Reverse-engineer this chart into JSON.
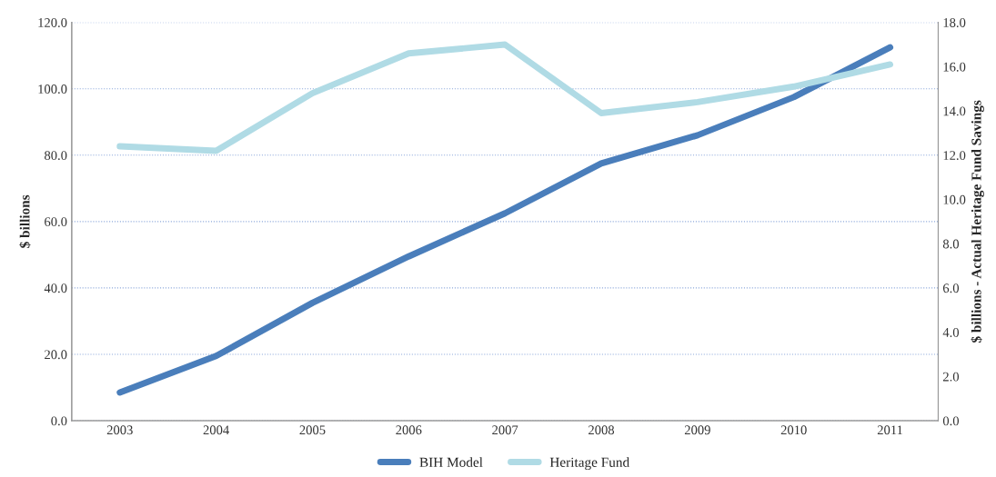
{
  "chart_data": {
    "type": "line",
    "ylabel": "$ billions",
    "y2label": "$ billions - Actual Heritage Fund Savings",
    "categories": [
      "2003",
      "2004",
      "2005",
      "2006",
      "2007",
      "2008",
      "2009",
      "2010",
      "2011"
    ],
    "series": [
      {
        "name": "BIH Model",
        "color": "#4a7ebb",
        "values": [
          8.5,
          19.5,
          35.5,
          49.5,
          62.5,
          77.5,
          86,
          97.5,
          112.5
        ]
      },
      {
        "name": "Heritage Fund",
        "color": "#b0dbe5",
        "axis": "y2",
        "values": [
          12.4,
          12.2,
          14.8,
          16.6,
          17.0,
          13.9,
          14.4,
          15.1,
          16.1
        ]
      }
    ],
    "ylim": [
      0,
      120
    ],
    "yticks": [
      {
        "value": 0,
        "label": "0.0"
      },
      {
        "value": 20,
        "label": "20.0"
      },
      {
        "value": 40,
        "label": "40.0"
      },
      {
        "value": 60,
        "label": "60.0"
      },
      {
        "value": 80,
        "label": "80.0"
      },
      {
        "value": 100,
        "label": "100.0"
      },
      {
        "value": 120,
        "label": "120.0"
      }
    ],
    "y2lim": [
      0,
      18
    ],
    "y2ticks": [
      {
        "value": 0,
        "label": "0.0"
      },
      {
        "value": 2,
        "label": "2.0"
      },
      {
        "value": 4,
        "label": "4.0"
      },
      {
        "value": 6,
        "label": "6.0"
      },
      {
        "value": 8,
        "label": "8.0"
      },
      {
        "value": 10,
        "label": "10.0"
      },
      {
        "value": 12,
        "label": "12.0"
      },
      {
        "value": 14,
        "label": "14.0"
      },
      {
        "value": 16,
        "label": "16.0"
      },
      {
        "value": 18,
        "label": "18.0"
      }
    ],
    "grid": "y",
    "legend": "bottom",
    "marker": "none",
    "line_style": "solid"
  }
}
